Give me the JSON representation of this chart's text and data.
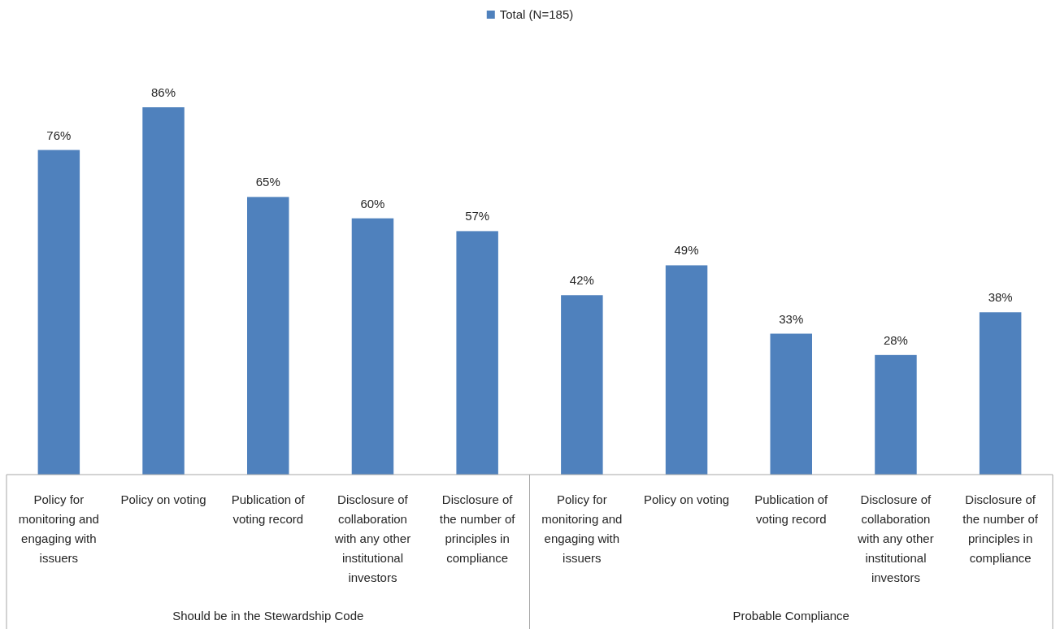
{
  "chart_data": {
    "type": "bar",
    "categories": [
      "Policy for monitoring and engaging with issuers",
      "Policy on voting",
      "Publication of voting record",
      "Disclosure of collaboration with any other institutional investors",
      "Disclosure of the number of principles in compliance",
      "Policy for monitoring and engaging with issuers",
      "Policy on voting",
      "Publication of voting record",
      "Disclosure of collaboration with any other institutional investors",
      "Disclosure of the number of principles in compliance"
    ],
    "series": [
      {
        "name": "Total (N=185)",
        "color": "#4f81bd",
        "values": [
          76,
          86,
          65,
          60,
          57,
          42,
          49,
          33,
          28,
          38
        ],
        "value_labels": [
          "76%",
          "86%",
          "65%",
          "60%",
          "57%",
          "42%",
          "49%",
          "33%",
          "28%",
          "38%"
        ]
      }
    ],
    "legend": "top",
    "annotations": [
      "Should be in the Stewardship Code",
      "Probable Compliance"
    ]
  }
}
